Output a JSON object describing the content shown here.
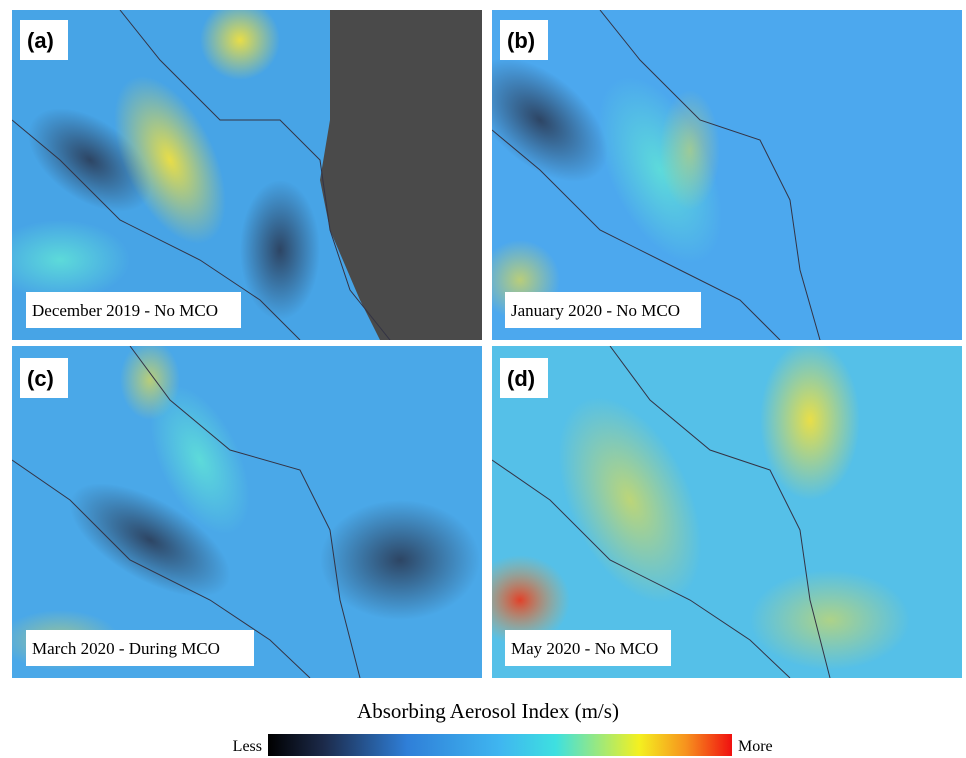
{
  "panels": [
    {
      "label": "(a)",
      "caption": "December 2019 - No MCO"
    },
    {
      "label": "(b)",
      "caption": "January 2020 - No MCO"
    },
    {
      "label": "(c)",
      "caption": "March 2020 - During MCO"
    },
    {
      "label": "(d)",
      "caption": "May 2020 - No MCO"
    }
  ],
  "colorbar": {
    "title": "Absorbing Aerosol Index (m/s)",
    "min_label": "Less",
    "max_label": "More"
  }
}
